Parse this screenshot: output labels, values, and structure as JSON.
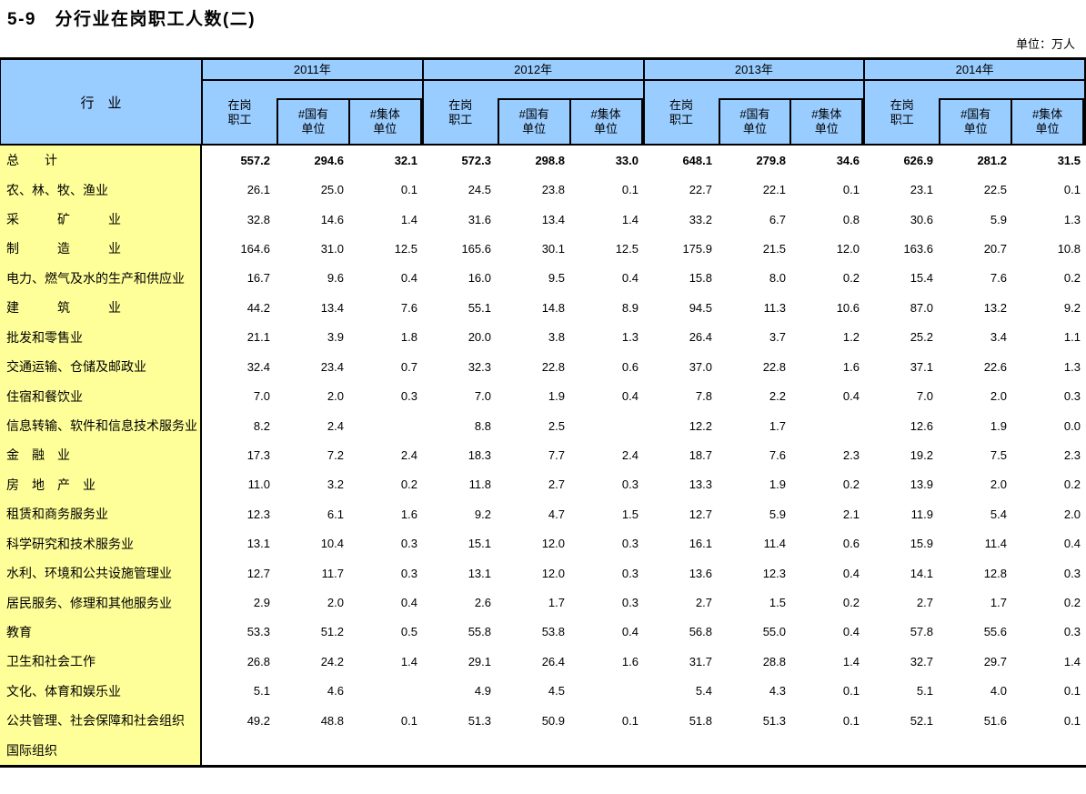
{
  "title": "5-9　分行业在岗职工人数(二)",
  "unit_label": "单位：万人",
  "table": {
    "industry_header": "行　业",
    "years": [
      {
        "label": "2011年"
      },
      {
        "label": "2012年"
      },
      {
        "label": "2013年"
      },
      {
        "label": "2014年"
      }
    ],
    "subcolumns": [
      {
        "id": "zaigang-zhigong",
        "line1": "在岗",
        "line2": "职工"
      },
      {
        "id": "guoyou-danwei",
        "line1": "#国有",
        "line2": "单位"
      },
      {
        "id": "jiti-danwei",
        "line1": "#集体",
        "line2": "单位"
      }
    ],
    "colors": {
      "header_bg": "#99CCFF",
      "label_bg": "#FFFF99",
      "border": "#000000"
    },
    "rows": [
      {
        "label": "总　　计",
        "bold": true,
        "values": [
          "557.2",
          "294.6",
          "32.1",
          "572.3",
          "298.8",
          "33.0",
          "648.1",
          "279.8",
          "34.6",
          "626.9",
          "281.2",
          "31.5"
        ]
      },
      {
        "label": "农、林、牧、渔业",
        "bold": false,
        "values": [
          "26.1",
          "25.0",
          "0.1",
          "24.5",
          "23.8",
          "0.1",
          "22.7",
          "22.1",
          "0.1",
          "23.1",
          "22.5",
          "0.1"
        ]
      },
      {
        "label": "采　　　矿　　　业",
        "bold": false,
        "values": [
          "32.8",
          "14.6",
          "1.4",
          "31.6",
          "13.4",
          "1.4",
          "33.2",
          "6.7",
          "0.8",
          "30.6",
          "5.9",
          "1.3"
        ]
      },
      {
        "label": "制　　　造　　　业",
        "bold": false,
        "values": [
          "164.6",
          "31.0",
          "12.5",
          "165.6",
          "30.1",
          "12.5",
          "175.9",
          "21.5",
          "12.0",
          "163.6",
          "20.7",
          "10.8"
        ]
      },
      {
        "label": "电力、燃气及水的生产和供应业",
        "bold": false,
        "values": [
          "16.7",
          "9.6",
          "0.4",
          "16.0",
          "9.5",
          "0.4",
          "15.8",
          "8.0",
          "0.2",
          "15.4",
          "7.6",
          "0.2"
        ]
      },
      {
        "label": "建　　　筑　　　业",
        "bold": false,
        "values": [
          "44.2",
          "13.4",
          "7.6",
          "55.1",
          "14.8",
          "8.9",
          "94.5",
          "11.3",
          "10.6",
          "87.0",
          "13.2",
          "9.2"
        ]
      },
      {
        "label": "批发和零售业",
        "bold": false,
        "values": [
          "21.1",
          "3.9",
          "1.8",
          "20.0",
          "3.8",
          "1.3",
          "26.4",
          "3.7",
          "1.2",
          "25.2",
          "3.4",
          "1.1"
        ]
      },
      {
        "label": "交通运输、仓储及邮政业",
        "bold": false,
        "values": [
          "32.4",
          "23.4",
          "0.7",
          "32.3",
          "22.8",
          "0.6",
          "37.0",
          "22.8",
          "1.6",
          "37.1",
          "22.6",
          "1.3"
        ]
      },
      {
        "label": "住宿和餐饮业",
        "bold": false,
        "values": [
          "7.0",
          "2.0",
          "0.3",
          "7.0",
          "1.9",
          "0.4",
          "7.8",
          "2.2",
          "0.4",
          "7.0",
          "2.0",
          "0.3"
        ]
      },
      {
        "label": "信息转输、软件和信息技术服务业",
        "bold": false,
        "values": [
          "8.2",
          "2.4",
          "",
          "8.8",
          "2.5",
          "",
          "12.2",
          "1.7",
          "",
          "12.6",
          "1.9",
          "0.0"
        ]
      },
      {
        "label": "金　融　业",
        "bold": false,
        "values": [
          "17.3",
          "7.2",
          "2.4",
          "18.3",
          "7.7",
          "2.4",
          "18.7",
          "7.6",
          "2.3",
          "19.2",
          "7.5",
          "2.3"
        ]
      },
      {
        "label": "房　地　产　业",
        "bold": false,
        "values": [
          "11.0",
          "3.2",
          "0.2",
          "11.8",
          "2.7",
          "0.3",
          "13.3",
          "1.9",
          "0.2",
          "13.9",
          "2.0",
          "0.2"
        ]
      },
      {
        "label": "租赁和商务服务业",
        "bold": false,
        "values": [
          "12.3",
          "6.1",
          "1.6",
          "9.2",
          "4.7",
          "1.5",
          "12.7",
          "5.9",
          "2.1",
          "11.9",
          "5.4",
          "2.0"
        ]
      },
      {
        "label": "科学研究和技术服务业",
        "bold": false,
        "values": [
          "13.1",
          "10.4",
          "0.3",
          "15.1",
          "12.0",
          "0.3",
          "16.1",
          "11.4",
          "0.6",
          "15.9",
          "11.4",
          "0.4"
        ]
      },
      {
        "label": "水利、环境和公共设施管理业",
        "bold": false,
        "values": [
          "12.7",
          "11.7",
          "0.3",
          "13.1",
          "12.0",
          "0.3",
          "13.6",
          "12.3",
          "0.4",
          "14.1",
          "12.8",
          "0.3"
        ]
      },
      {
        "label": "居民服务、修理和其他服务业",
        "bold": false,
        "values": [
          "2.9",
          "2.0",
          "0.4",
          "2.6",
          "1.7",
          "0.3",
          "2.7",
          "1.5",
          "0.2",
          "2.7",
          "1.7",
          "0.2"
        ]
      },
      {
        "label": "教育",
        "bold": false,
        "values": [
          "53.3",
          "51.2",
          "0.5",
          "55.8",
          "53.8",
          "0.4",
          "56.8",
          "55.0",
          "0.4",
          "57.8",
          "55.6",
          "0.3"
        ]
      },
      {
        "label": "卫生和社会工作",
        "bold": false,
        "values": [
          "26.8",
          "24.2",
          "1.4",
          "29.1",
          "26.4",
          "1.6",
          "31.7",
          "28.8",
          "1.4",
          "32.7",
          "29.7",
          "1.4"
        ]
      },
      {
        "label": "文化、体育和娱乐业",
        "bold": false,
        "values": [
          "5.1",
          "4.6",
          "",
          "4.9",
          "4.5",
          "",
          "5.4",
          "4.3",
          "0.1",
          "5.1",
          "4.0",
          "0.1"
        ]
      },
      {
        "label": "公共管理、社会保障和社会组织",
        "bold": false,
        "values": [
          "49.2",
          "48.8",
          "0.1",
          "51.3",
          "50.9",
          "0.1",
          "51.8",
          "51.3",
          "0.1",
          "52.1",
          "51.6",
          "0.1"
        ]
      },
      {
        "label": "国际组织",
        "bold": false,
        "values": [
          "",
          "",
          "",
          "",
          "",
          "",
          "",
          "",
          "",
          "",
          "",
          ""
        ]
      }
    ]
  }
}
